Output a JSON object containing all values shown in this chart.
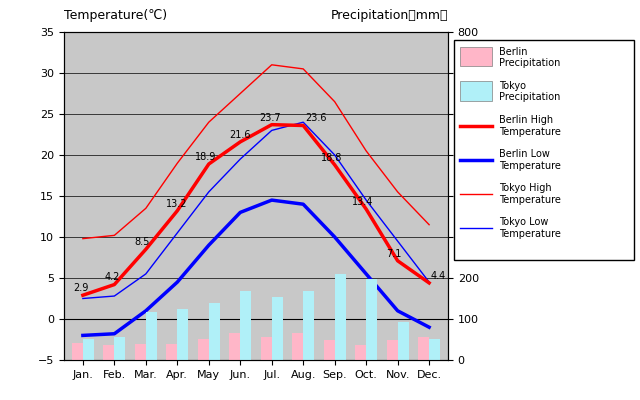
{
  "months": [
    "Jan.",
    "Feb.",
    "Mar.",
    "Apr.",
    "May",
    "Jun.",
    "Jul.",
    "Aug.",
    "Sep.",
    "Oct.",
    "Nov.",
    "Dec."
  ],
  "berlin_high": [
    2.9,
    4.2,
    8.5,
    13.2,
    18.9,
    21.6,
    23.7,
    23.6,
    18.8,
    13.4,
    7.1,
    4.4
  ],
  "berlin_low": [
    -2.0,
    -1.8,
    1.0,
    4.5,
    9.0,
    13.0,
    14.5,
    14.0,
    10.0,
    5.5,
    1.0,
    -1.0
  ],
  "tokyo_high": [
    9.8,
    10.2,
    13.5,
    19.0,
    24.0,
    27.5,
    31.0,
    30.5,
    26.5,
    20.5,
    15.5,
    11.5
  ],
  "tokyo_low": [
    2.5,
    2.8,
    5.5,
    10.5,
    15.5,
    19.5,
    23.0,
    24.0,
    20.0,
    14.5,
    9.5,
    4.5
  ],
  "berlin_precip_mm": [
    42,
    36,
    40,
    38,
    52,
    65,
    55,
    65,
    48,
    36,
    50,
    55
  ],
  "tokyo_precip_mm": [
    52,
    56,
    118,
    125,
    138,
    168,
    154,
    168,
    210,
    198,
    93,
    51
  ],
  "title_left": "Temperature(℃)",
  "title_right": "Precipitation（mm）",
  "temp_ylim": [
    -5,
    35
  ],
  "precip_ylim": [
    0,
    800
  ],
  "bg_color": "#c8c8c8",
  "bar_width": 0.35,
  "berlin_high_labels": [
    [
      0,
      2.9,
      "2.9"
    ],
    [
      1,
      4.2,
      "4.2"
    ],
    [
      2,
      8.5,
      "8.5"
    ],
    [
      3,
      13.2,
      "13.2"
    ],
    [
      4,
      18.9,
      "18.9"
    ],
    [
      5,
      21.6,
      "21.6"
    ],
    [
      6,
      23.7,
      "23.7"
    ],
    [
      7,
      23.6,
      "23.6"
    ],
    [
      8,
      18.8,
      "18.8"
    ],
    [
      9,
      13.4,
      "13.4"
    ],
    [
      10,
      7.1,
      "7.1"
    ],
    [
      11,
      4.4,
      "4.4"
    ]
  ]
}
